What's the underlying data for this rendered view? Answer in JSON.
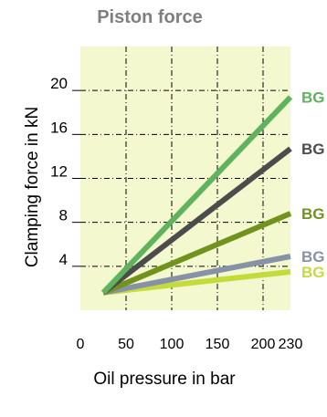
{
  "chart_data": {
    "type": "line",
    "title": "Piston force",
    "xlabel": "Oil pressure in bar",
    "ylabel": "Clamping force in kN",
    "xlim": [
      0,
      230
    ],
    "ylim": [
      0,
      24
    ],
    "x_ticks": [
      0,
      50,
      100,
      150,
      200,
      230
    ],
    "x_tick_labels": [
      "0",
      "50",
      "100",
      "150",
      "200",
      "230"
    ],
    "y_ticks": [
      4,
      8,
      12,
      16,
      20
    ],
    "y_tick_labels": [
      "4",
      "8",
      "12",
      "16",
      "20"
    ],
    "vertical_grid": [
      50,
      100,
      150,
      200
    ],
    "horizontal_grid": [
      4,
      8,
      12,
      16,
      20
    ],
    "plot_background": "#f3f8cf",
    "grid_color": "#000000",
    "grid_style": "dash-dot",
    "series": [
      {
        "name": "BG",
        "x": [
          25,
          230
        ],
        "y": [
          1.6,
          19.4
        ],
        "color": "#5fb35d"
      },
      {
        "name": "BG",
        "x": [
          25,
          230
        ],
        "y": [
          1.6,
          14.7
        ],
        "color": "#4c4c4c"
      },
      {
        "name": "BG",
        "x": [
          25,
          230
        ],
        "y": [
          1.6,
          8.8
        ],
        "color": "#71931e"
      },
      {
        "name": "BG",
        "x": [
          25,
          230
        ],
        "y": [
          1.6,
          4.9
        ],
        "color": "#8792a6"
      },
      {
        "name": "BG",
        "x": [
          25,
          230
        ],
        "y": [
          1.6,
          3.5
        ],
        "color": "#c4dc3b"
      }
    ]
  }
}
